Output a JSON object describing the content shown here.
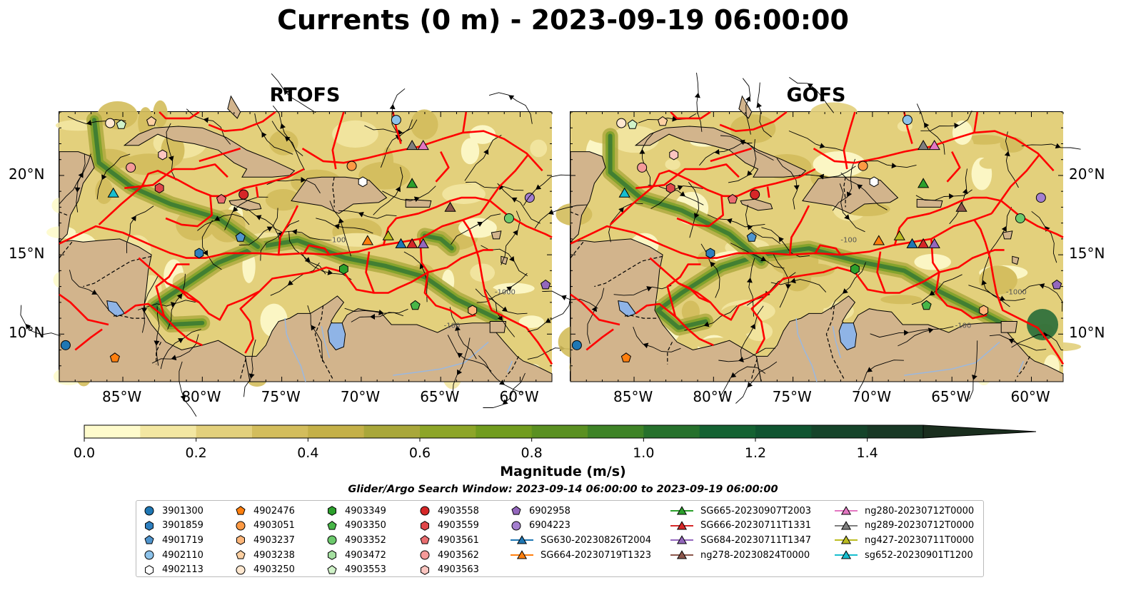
{
  "title": "Currents (0 m) - 2023-09-19 06:00:00",
  "panels": [
    {
      "title": "RTOFS"
    },
    {
      "title": "GOFS"
    }
  ],
  "map": {
    "lon_range": [
      -89,
      -58
    ],
    "lat_range": [
      7,
      24
    ],
    "x_ticks": [
      "85°W",
      "80°W",
      "75°W",
      "70°W",
      "65°W",
      "60°W"
    ],
    "y_ticks": [
      "20°N",
      "15°N",
      "10°N"
    ],
    "land_color": "#d2b48c",
    "boundary_color": "#ff0000",
    "contour_labels": [
      "-100",
      "-1000"
    ]
  },
  "colorbar": {
    "label": "Magnitude (m/s)",
    "ticks": [
      "0.0",
      "0.2",
      "0.4",
      "0.6",
      "0.8",
      "1.0",
      "1.2",
      "1.4"
    ],
    "range": [
      0,
      1.5
    ],
    "extend": "max",
    "colors": [
      "#fefbcc",
      "#f3e7a2",
      "#e3d07c",
      "#d3bd5c",
      "#c4b048",
      "#a9a73a",
      "#8da528",
      "#719c1e",
      "#5a9021",
      "#3e8326",
      "#26712c",
      "#146232",
      "#0f5430",
      "#15442a",
      "#183825",
      "#1a2e1e"
    ]
  },
  "search_window": "Glider/Argo Search Window: 2023-09-14 06:00:00 to 2023-09-19 06:00:00",
  "legend": {
    "columns": [
      [
        {
          "label": "3901300",
          "marker": "circle",
          "color": "#1f77b4"
        },
        {
          "label": "3901859",
          "marker": "hexagon",
          "color": "#2e7fbf"
        },
        {
          "label": "4901719",
          "marker": "pentagon",
          "color": "#4f94cd"
        },
        {
          "label": "4902110",
          "marker": "circle",
          "color": "#8cc2ea"
        },
        {
          "label": "4902113",
          "marker": "hexagon",
          "color": "#ffffff"
        }
      ],
      [
        {
          "label": "4902476",
          "marker": "pentagon",
          "color": "#ff7f0e"
        },
        {
          "label": "4903051",
          "marker": "circle",
          "color": "#fd9a44"
        },
        {
          "label": "4903237",
          "marker": "hexagon",
          "color": "#fdb67a"
        },
        {
          "label": "4903238",
          "marker": "pentagon",
          "color": "#fdd0a2"
        },
        {
          "label": "4903250",
          "marker": "circle",
          "color": "#ffe8d0"
        }
      ],
      [
        {
          "label": "4903349",
          "marker": "hexagon",
          "color": "#2ca02c"
        },
        {
          "label": "4903350",
          "marker": "pentagon",
          "color": "#48b648"
        },
        {
          "label": "4903352",
          "marker": "circle",
          "color": "#6cc96c"
        },
        {
          "label": "4903472",
          "marker": "hexagon",
          "color": "#a4dfa0"
        },
        {
          "label": "4903553",
          "marker": "pentagon",
          "color": "#d0f2c8"
        }
      ],
      [
        {
          "label": "4903558",
          "marker": "circle",
          "color": "#d62728"
        },
        {
          "label": "4903559",
          "marker": "hexagon",
          "color": "#e0474a"
        },
        {
          "label": "4903561",
          "marker": "pentagon",
          "color": "#ea6e70"
        },
        {
          "label": "4903562",
          "marker": "circle",
          "color": "#f59a99"
        },
        {
          "label": "4903563",
          "marker": "hexagon",
          "color": "#fcc5c0"
        }
      ],
      [
        {
          "label": "6902958",
          "marker": "pentagon",
          "color": "#9467bd"
        },
        {
          "label": "6904223",
          "marker": "circle",
          "color": "#a47fcf"
        },
        {
          "label": "SG630-20230826T2004",
          "marker": "triangle",
          "color": "#1f77b4"
        },
        {
          "label": "SG664-20230719T1323",
          "marker": "triangle",
          "color": "#ff7f0e"
        }
      ],
      [
        {
          "label": "SG665-20230907T2003",
          "marker": "triangle",
          "color": "#2ca02c"
        },
        {
          "label": "SG666-20230711T1331",
          "marker": "triangle",
          "color": "#d62728"
        },
        {
          "label": "SG684-20230711T1347",
          "marker": "triangle",
          "color": "#9467bd"
        },
        {
          "label": "ng278-20230824T0000",
          "marker": "triangle",
          "color": "#8c564b"
        }
      ],
      [
        {
          "label": "ng280-20230712T0000",
          "marker": "triangle",
          "color": "#e377c2"
        },
        {
          "label": "ng289-20230712T0000",
          "marker": "triangle",
          "color": "#7f7f7f"
        },
        {
          "label": "ng427-20230711T0000",
          "marker": "triangle",
          "color": "#bcbd22"
        },
        {
          "label": "sg652-20230901T1200",
          "marker": "triangle",
          "color": "#17becf"
        }
      ]
    ]
  },
  "platforms": [
    {
      "id": "3901300",
      "lon": -88.6,
      "lat": 9.3
    },
    {
      "id": "4902476",
      "lon": -85.5,
      "lat": 8.5
    },
    {
      "id": "4901719",
      "lon": -77.6,
      "lat": 16.1
    },
    {
      "id": "3901859",
      "lon": -80.2,
      "lat": 15.1
    },
    {
      "id": "4903558",
      "lon": -77.4,
      "lat": 18.8
    },
    {
      "id": "4903561",
      "lon": -78.8,
      "lat": 18.5
    },
    {
      "id": "4903559",
      "lon": -82.7,
      "lat": 19.2
    },
    {
      "id": "4903562",
      "lon": -84.5,
      "lat": 20.5
    },
    {
      "id": "4903563",
      "lon": -82.5,
      "lat": 21.3
    },
    {
      "id": "4903250",
      "lon": -85.8,
      "lat": 23.3
    },
    {
      "id": "4903553",
      "lon": -85.1,
      "lat": 23.2
    },
    {
      "id": "4903238",
      "lon": -83.2,
      "lat": 23.4
    },
    {
      "id": "4902110",
      "lon": -67.8,
      "lat": 23.5
    },
    {
      "id": "4903051",
      "lon": -70.6,
      "lat": 20.6
    },
    {
      "id": "4902113",
      "lon": -69.9,
      "lat": 19.6
    },
    {
      "id": "4903349",
      "lon": -71.1,
      "lat": 14.1
    },
    {
      "id": "4903350",
      "lon": -66.6,
      "lat": 11.8
    },
    {
      "id": "4903352",
      "lon": -60.7,
      "lat": 17.3
    },
    {
      "id": "6902958",
      "lon": -58.4,
      "lat": 13.1
    },
    {
      "id": "6904223",
      "lon": -59.4,
      "lat": 18.6
    },
    {
      "id": "4903237",
      "lon": -63,
      "lat": 11.5
    }
  ],
  "gliders": [
    {
      "id": "sg652-20230901T1200",
      "lon": -85.6,
      "lat": 18.9
    },
    {
      "id": "SG664-20230719T1323",
      "lon": -69.6,
      "lat": 15.9
    },
    {
      "id": "ng427-20230711T0000",
      "lon": -68.3,
      "lat": 16.2
    },
    {
      "id": "SG630-20230826T2004",
      "lon": -67.5,
      "lat": 15.7
    },
    {
      "id": "SG666-20230711T1331",
      "lon": -66.8,
      "lat": 15.7
    },
    {
      "id": "SG684-20230711T1347",
      "lon": -66.1,
      "lat": 15.7
    },
    {
      "id": "SG665-20230907T2003",
      "lon": -66.8,
      "lat": 19.5
    },
    {
      "id": "ng289-20230712T0000",
      "lon": -66.8,
      "lat": 21.9
    },
    {
      "id": "ng280-20230712T0000",
      "lon": -66.1,
      "lat": 21.9
    },
    {
      "id": "ng278-20230824T0000",
      "lon": -64.4,
      "lat": 18
    }
  ],
  "lakes": [
    {
      "name": "lake-maracaibo",
      "lon": -71.6,
      "lat": 9.8
    }
  ]
}
